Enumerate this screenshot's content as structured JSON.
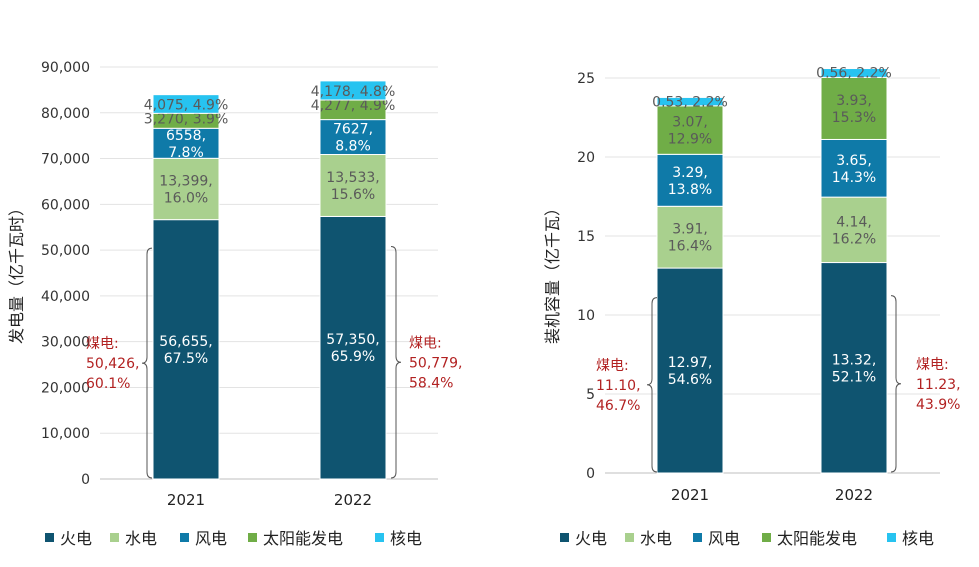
{
  "chart_data": [
    {
      "type": "bar",
      "stacked": true,
      "ylabel": "发电量（亿千瓦时）",
      "ylim": [
        0,
        90000
      ],
      "yticks": [
        "0",
        "10,000",
        "20,000",
        "30,000",
        "40,000",
        "50,000",
        "60,000",
        "70,000",
        "80,000",
        "90,000"
      ],
      "ytick_values": [
        0,
        10000,
        20000,
        30000,
        40000,
        50000,
        60000,
        70000,
        80000,
        90000
      ],
      "categories": [
        "2021",
        "2022"
      ],
      "series": [
        {
          "name": "火电",
          "color": "#0f5470",
          "values": [
            56655,
            57350
          ],
          "labels": [
            [
              "56,655,",
              "67.5%"
            ],
            [
              "57,350,",
              "65.9%"
            ]
          ],
          "label_color": "#ffffff"
        },
        {
          "name": "水电",
          "color": "#a9d08e",
          "values": [
            13399,
            13533
          ],
          "labels": [
            [
              "13,399,",
              "16.0%"
            ],
            [
              "13,533,",
              "15.6%"
            ]
          ],
          "label_color": "#5a5a5a"
        },
        {
          "name": "风电",
          "color": "#0f7aa8",
          "values": [
            6558,
            7627
          ],
          "labels": [
            [
              "6558,",
              "7.8%"
            ],
            [
              "7627,",
              "8.8%"
            ]
          ],
          "label_color": "#ffffff"
        },
        {
          "name": "太阳能发电",
          "color": "#70ad47",
          "values": [
            3270,
            4277
          ],
          "labels": [
            [
              "3,270, 3.9%"
            ],
            [
              "4,277, 4.9%"
            ]
          ],
          "label_color": "#5a5a5a"
        },
        {
          "name": "核电",
          "color": "#27c3f0",
          "values": [
            4075,
            4178
          ],
          "labels": [
            [
              "4,075, 4.9%"
            ],
            [
              "4,178, 4.8%"
            ]
          ],
          "label_color": "#5a5a5a"
        }
      ],
      "coal": [
        {
          "category": "2021",
          "value": 50426,
          "lines": [
            "煤电:",
            "50,426,",
            "60.1%"
          ]
        },
        {
          "category": "2022",
          "value": 50779,
          "lines": [
            "煤电:",
            "50,779,",
            "58.4%"
          ]
        }
      ]
    },
    {
      "type": "bar",
      "stacked": true,
      "ylabel": "装机容量（亿千瓦）",
      "ylim": [
        0,
        25
      ],
      "yticks": [
        "0",
        "5",
        "10",
        "15",
        "20",
        "25"
      ],
      "ytick_values": [
        0,
        5,
        10,
        15,
        20,
        25
      ],
      "categories": [
        "2021",
        "2022"
      ],
      "series": [
        {
          "name": "火电",
          "color": "#0f5470",
          "values": [
            12.97,
            13.32
          ],
          "labels": [
            [
              "12.97,",
              "54.6%"
            ],
            [
              "13.32,",
              "52.1%"
            ]
          ],
          "label_color": "#ffffff"
        },
        {
          "name": "水电",
          "color": "#a9d08e",
          "values": [
            3.91,
            4.14
          ],
          "labels": [
            [
              "3.91,",
              "16.4%"
            ],
            [
              "4.14,",
              "16.2%"
            ]
          ],
          "label_color": "#5a5a5a"
        },
        {
          "name": "风电",
          "color": "#0f7aa8",
          "values": [
            3.29,
            3.65
          ],
          "labels": [
            [
              "3.29,",
              "13.8%"
            ],
            [
              "3.65,",
              "14.3%"
            ]
          ],
          "label_color": "#ffffff"
        },
        {
          "name": "太阳能发电",
          "color": "#70ad47",
          "values": [
            3.07,
            3.93
          ],
          "labels": [
            [
              "3.07,",
              "12.9%"
            ],
            [
              "3.93,",
              "15.3%"
            ]
          ],
          "label_color": "#5a5a5a"
        },
        {
          "name": "核电",
          "color": "#27c3f0",
          "values": [
            0.53,
            0.56
          ],
          "labels": [
            [
              "0.53, 2.2%"
            ],
            [
              "0.56, 2.2%"
            ]
          ],
          "label_color": "#5a5a5a"
        }
      ],
      "coal": [
        {
          "category": "2021",
          "value": 11.1,
          "lines": [
            "煤电:",
            "11.10,",
            "46.7%"
          ]
        },
        {
          "category": "2022",
          "value": 11.23,
          "lines": [
            "煤电:",
            "11.23,",
            "43.9%"
          ]
        }
      ]
    }
  ],
  "legend": [
    "火电",
    "水电",
    "风电",
    "太阳能发电",
    "核电"
  ]
}
